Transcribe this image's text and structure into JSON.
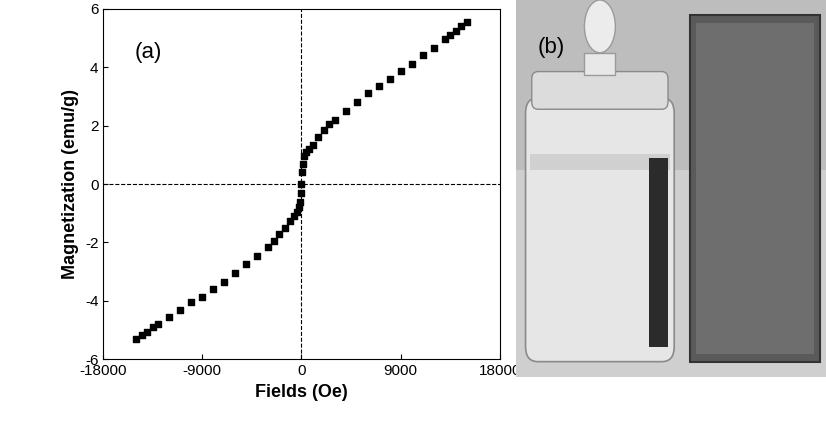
{
  "chart_data": {
    "type": "scatter",
    "x_label": "Fields (Oe)",
    "y_label": "Magnetization (emu/g)",
    "annotations": [
      "(a)"
    ],
    "x": [
      -15000,
      -14500,
      -14000,
      -13500,
      -13000,
      -12000,
      -11000,
      -10000,
      -9000,
      -8000,
      -7000,
      -6000,
      -5000,
      -4000,
      -3000,
      -2500,
      -2000,
      -1500,
      -1000,
      -700,
      -400,
      -200,
      -100,
      -50,
      0,
      50,
      100,
      200,
      400,
      700,
      1000,
      1500,
      2000,
      2500,
      3000,
      4000,
      5000,
      6000,
      7000,
      8000,
      9000,
      10000,
      11000,
      12000,
      13000,
      13500,
      14000,
      14500,
      15000
    ],
    "values": [
      -5.3,
      -5.15,
      -5.05,
      -4.9,
      -4.8,
      -4.55,
      -4.3,
      -4.05,
      -3.85,
      -3.6,
      -3.35,
      -3.05,
      -2.75,
      -2.45,
      -2.15,
      -1.95,
      -1.7,
      -1.5,
      -1.25,
      -1.1,
      -0.95,
      -0.8,
      -0.6,
      -0.3,
      0.0,
      0.4,
      0.7,
      0.95,
      1.1,
      1.2,
      1.35,
      1.6,
      1.85,
      2.05,
      2.2,
      2.5,
      2.8,
      3.1,
      3.35,
      3.6,
      3.85,
      4.1,
      4.4,
      4.65,
      4.95,
      5.1,
      5.25,
      5.4,
      5.55
    ],
    "color": "#000000",
    "marker": "square",
    "xlim": [
      -18000,
      18000
    ],
    "xticks": [
      -18000,
      -9000,
      0,
      9000,
      18000
    ],
    "ylim": [
      -6,
      6
    ],
    "yticks": [
      -6,
      -4,
      -2,
      0,
      2,
      4,
      6
    ],
    "grid": false
  },
  "photo": {
    "label": "(b)"
  }
}
